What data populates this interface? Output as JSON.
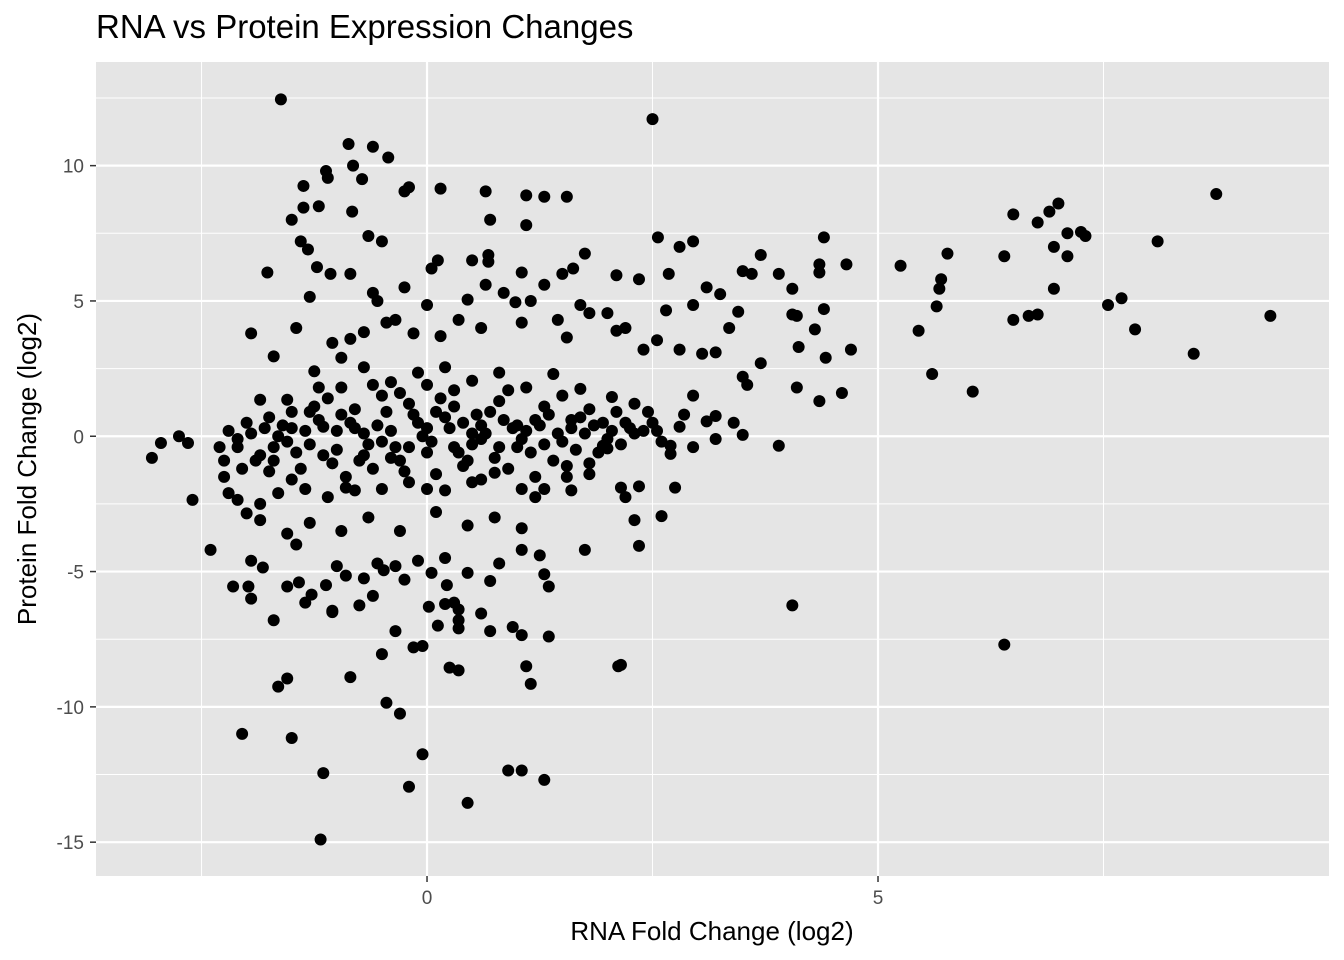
{
  "chart_data": {
    "type": "scatter",
    "title": "RNA vs Protein Expression Changes",
    "xlabel": "RNA Fold Change (log2)",
    "ylabel": "Protein Fold Change (log2)",
    "xlim": [
      -3.67,
      10.0
    ],
    "ylim": [
      -16.25,
      13.83
    ],
    "x_ticks": [
      0,
      5
    ],
    "x_tick_labels": [
      "0",
      "5"
    ],
    "y_ticks": [
      -15,
      -10,
      -5,
      0,
      5,
      10
    ],
    "y_tick_labels": [
      "-15",
      "-10",
      "-5",
      "0",
      "5",
      "10"
    ],
    "grid": true,
    "legend": "none",
    "colors": {
      "panel": "#e5e5e5",
      "grid": "#ffffff",
      "point": "#000000",
      "tick_text": "#4d4d4d"
    },
    "points": [
      [
        -1.62,
        12.45
      ],
      [
        2.5,
        11.72
      ],
      [
        -0.87,
        10.8
      ],
      [
        -0.6,
        10.7
      ],
      [
        -0.43,
        10.3
      ],
      [
        -0.82,
        10.0
      ],
      [
        -1.12,
        9.8
      ],
      [
        -1.1,
        9.55
      ],
      [
        -0.72,
        9.5
      ],
      [
        -1.37,
        9.25
      ],
      [
        -0.2,
        9.2
      ],
      [
        -0.25,
        9.05
      ],
      [
        0.15,
        9.15
      ],
      [
        0.65,
        9.05
      ],
      [
        1.1,
        8.9
      ],
      [
        1.3,
        8.85
      ],
      [
        1.55,
        8.85
      ],
      [
        -1.37,
        8.45
      ],
      [
        -1.2,
        8.5
      ],
      [
        -0.83,
        8.3
      ],
      [
        -1.5,
        8.0
      ],
      [
        0.7,
        8.0
      ],
      [
        1.1,
        7.8
      ],
      [
        -1.4,
        7.2
      ],
      [
        -1.32,
        6.9
      ],
      [
        -0.65,
        7.4
      ],
      [
        -0.5,
        7.2
      ],
      [
        2.56,
        7.35
      ],
      [
        2.8,
        7.0
      ],
      [
        2.95,
        7.2
      ],
      [
        -1.77,
        6.05
      ],
      [
        -1.22,
        6.25
      ],
      [
        -1.07,
        6.0
      ],
      [
        -0.85,
        6.0
      ],
      [
        0.05,
        6.2
      ],
      [
        0.12,
        6.5
      ],
      [
        0.5,
        6.5
      ],
      [
        0.68,
        6.7
      ],
      [
        0.68,
        6.45
      ],
      [
        1.05,
        6.05
      ],
      [
        1.5,
        6.0
      ],
      [
        1.62,
        6.2
      ],
      [
        1.75,
        6.75
      ],
      [
        2.1,
        5.95
      ],
      [
        2.35,
        5.8
      ],
      [
        2.68,
        6.0
      ],
      [
        3.5,
        6.1
      ],
      [
        3.6,
        6.0
      ],
      [
        3.7,
        6.7
      ],
      [
        3.9,
        6.0
      ],
      [
        4.35,
        6.35
      ],
      [
        4.4,
        7.35
      ],
      [
        4.35,
        6.05
      ],
      [
        4.65,
        6.35
      ],
      [
        5.25,
        6.3
      ],
      [
        5.7,
        5.8
      ],
      [
        5.77,
        6.75
      ],
      [
        6.4,
        6.65
      ],
      [
        6.5,
        8.2
      ],
      [
        6.77,
        7.9
      ],
      [
        6.9,
        8.3
      ],
      [
        7.0,
        8.6
      ],
      [
        6.95,
        7.0
      ],
      [
        7.1,
        7.5
      ],
      [
        7.1,
        6.65
      ],
      [
        7.25,
        7.55
      ],
      [
        7.3,
        7.4
      ],
      [
        8.1,
        7.2
      ],
      [
        8.75,
        8.95
      ],
      [
        7.7,
        5.1
      ],
      [
        7.55,
        4.85
      ],
      [
        7.85,
        3.95
      ],
      [
        8.5,
        3.05
      ],
      [
        9.35,
        4.45
      ],
      [
        6.95,
        5.45
      ],
      [
        6.5,
        4.3
      ],
      [
        6.67,
        4.45
      ],
      [
        6.77,
        4.5
      ],
      [
        5.45,
        3.9
      ],
      [
        5.65,
        4.8
      ],
      [
        5.68,
        5.45
      ],
      [
        5.6,
        2.3
      ],
      [
        6.05,
        1.65
      ],
      [
        4.05,
        4.5
      ],
      [
        4.05,
        5.45
      ],
      [
        4.1,
        4.45
      ],
      [
        4.3,
        3.95
      ],
      [
        4.4,
        4.7
      ],
      [
        4.42,
        2.9
      ],
      [
        4.12,
        3.3
      ],
      [
        4.1,
        1.8
      ],
      [
        4.35,
        1.3
      ],
      [
        4.6,
        1.6
      ],
      [
        4.7,
        3.2
      ],
      [
        3.9,
        -0.35
      ],
      [
        4.05,
        -6.25
      ],
      [
        6.4,
        -7.7
      ],
      [
        -3.05,
        -0.8
      ],
      [
        -2.95,
        -0.25
      ],
      [
        -2.75,
        0.0
      ],
      [
        -2.65,
        -0.25
      ],
      [
        -2.6,
        -2.35
      ],
      [
        -2.4,
        -4.2
      ],
      [
        -2.25,
        -1.5
      ],
      [
        -2.2,
        -2.1
      ],
      [
        -2.1,
        -2.35
      ],
      [
        -2.15,
        -5.55
      ],
      [
        -1.98,
        -5.55
      ],
      [
        -1.95,
        -4.6
      ],
      [
        -1.95,
        -6.0
      ],
      [
        -1.82,
        -4.85
      ],
      [
        -1.7,
        -6.8
      ],
      [
        -1.55,
        -5.55
      ],
      [
        -1.45,
        -4.0
      ],
      [
        -1.42,
        -5.4
      ],
      [
        -1.28,
        -5.85
      ],
      [
        -1.35,
        -6.15
      ],
      [
        -1.12,
        -5.5
      ],
      [
        -1.05,
        -6.5
      ],
      [
        -1.0,
        -4.8
      ],
      [
        -0.9,
        -5.15
      ],
      [
        -0.7,
        -5.25
      ],
      [
        -0.6,
        -5.9
      ],
      [
        -0.48,
        -4.95
      ],
      [
        -0.55,
        -4.7
      ],
      [
        -0.35,
        -4.8
      ],
      [
        -0.25,
        -5.3
      ],
      [
        -0.1,
        -4.6
      ],
      [
        0.05,
        -5.05
      ],
      [
        0.2,
        -4.5
      ],
      [
        0.22,
        -5.5
      ],
      [
        0.45,
        -5.05
      ],
      [
        0.7,
        -5.35
      ],
      [
        0.8,
        -4.7
      ],
      [
        1.05,
        -4.2
      ],
      [
        1.25,
        -4.4
      ],
      [
        1.3,
        -5.1
      ],
      [
        1.35,
        -5.55
      ],
      [
        1.75,
        -4.2
      ],
      [
        0.2,
        -6.2
      ],
      [
        0.12,
        -7.0
      ],
      [
        0.3,
        -6.15
      ],
      [
        0.35,
        -6.4
      ],
      [
        0.35,
        -6.8
      ],
      [
        0.35,
        -7.1
      ],
      [
        0.02,
        -6.3
      ],
      [
        0.6,
        -6.55
      ],
      [
        0.7,
        -7.2
      ],
      [
        0.95,
        -7.05
      ],
      [
        1.05,
        -7.35
      ],
      [
        1.35,
        -7.4
      ],
      [
        1.1,
        -8.5
      ],
      [
        1.15,
        -9.15
      ],
      [
        -0.05,
        -7.75
      ],
      [
        -0.15,
        -7.8
      ],
      [
        -0.35,
        -7.2
      ],
      [
        -0.5,
        -8.05
      ],
      [
        -0.75,
        -6.25
      ],
      [
        -1.05,
        -6.45
      ],
      [
        -0.85,
        -8.9
      ],
      [
        -1.55,
        -8.95
      ],
      [
        -1.65,
        -9.25
      ],
      [
        -2.05,
        -11.0
      ],
      [
        -1.5,
        -11.15
      ],
      [
        -1.15,
        -12.45
      ],
      [
        -0.45,
        -9.85
      ],
      [
        -0.3,
        -10.25
      ],
      [
        -0.05,
        -11.75
      ],
      [
        -0.2,
        -12.95
      ],
      [
        0.35,
        -8.65
      ],
      [
        0.25,
        -8.55
      ],
      [
        1.05,
        -12.35
      ],
      [
        0.9,
        -12.35
      ],
      [
        1.3,
        -12.7
      ],
      [
        0.45,
        -13.55
      ],
      [
        -1.18,
        -14.9
      ],
      [
        2.15,
        -8.45
      ],
      [
        2.12,
        -8.5
      ],
      [
        2.3,
        -3.1
      ],
      [
        2.35,
        -4.05
      ],
      [
        2.2,
        -2.25
      ],
      [
        2.15,
        -1.9
      ],
      [
        2.35,
        -1.85
      ],
      [
        2.6,
        -2.95
      ],
      [
        2.75,
        -1.9
      ],
      [
        -1.95,
        3.8
      ],
      [
        -1.85,
        1.35
      ],
      [
        -1.7,
        2.95
      ],
      [
        -1.45,
        4.0
      ],
      [
        -1.3,
        5.15
      ],
      [
        -1.05,
        3.45
      ],
      [
        -0.95,
        2.9
      ],
      [
        -0.85,
        3.6
      ],
      [
        -0.7,
        3.85
      ],
      [
        -0.6,
        5.3
      ],
      [
        -0.55,
        5.0
      ],
      [
        -0.45,
        4.2
      ],
      [
        -0.35,
        4.3
      ],
      [
        -0.25,
        5.5
      ],
      [
        -0.15,
        3.8
      ],
      [
        0.0,
        4.85
      ],
      [
        0.15,
        3.7
      ],
      [
        0.35,
        4.3
      ],
      [
        0.45,
        5.05
      ],
      [
        0.6,
        4.0
      ],
      [
        0.65,
        5.6
      ],
      [
        0.85,
        5.3
      ],
      [
        0.98,
        4.95
      ],
      [
        1.05,
        4.2
      ],
      [
        1.15,
        5.0
      ],
      [
        1.3,
        5.6
      ],
      [
        1.45,
        4.3
      ],
      [
        1.55,
        3.65
      ],
      [
        1.7,
        4.85
      ],
      [
        1.8,
        4.55
      ],
      [
        2.0,
        4.55
      ],
      [
        2.1,
        3.9
      ],
      [
        2.2,
        4.0
      ],
      [
        2.4,
        3.2
      ],
      [
        2.55,
        3.55
      ],
      [
        2.65,
        4.65
      ],
      [
        2.8,
        3.2
      ],
      [
        2.95,
        4.85
      ],
      [
        3.1,
        5.5
      ],
      [
        3.25,
        5.25
      ],
      [
        3.35,
        4.0
      ],
      [
        3.2,
        3.1
      ],
      [
        3.05,
        3.05
      ],
      [
        3.45,
        4.6
      ],
      [
        3.5,
        2.2
      ],
      [
        3.55,
        1.9
      ],
      [
        3.7,
        2.7
      ],
      [
        2.95,
        1.5
      ],
      [
        2.85,
        0.8
      ],
      [
        2.8,
        0.35
      ],
      [
        2.95,
        -0.4
      ],
      [
        3.1,
        0.55
      ],
      [
        3.2,
        -0.1
      ],
      [
        3.4,
        0.5
      ],
      [
        3.5,
        0.05
      ],
      [
        3.2,
        0.75
      ],
      [
        2.7,
        -0.35
      ],
      [
        2.7,
        -0.65
      ],
      [
        2.45,
        0.9
      ],
      [
        2.55,
        0.2
      ],
      [
        2.25,
        0.3
      ],
      [
        2.0,
        -0.45
      ],
      [
        1.95,
        -0.35
      ],
      [
        1.8,
        -1.0
      ],
      [
        1.55,
        -1.5
      ],
      [
        1.6,
        -2.0
      ],
      [
        1.3,
        -1.95
      ],
      [
        1.2,
        -2.25
      ],
      [
        1.05,
        -1.95
      ],
      [
        0.75,
        -1.35
      ],
      [
        0.5,
        -1.7
      ],
      [
        0.2,
        -2.0
      ],
      [
        0.0,
        -1.95
      ],
      [
        -0.2,
        -1.7
      ],
      [
        -0.5,
        -1.95
      ],
      [
        -0.8,
        -2.0
      ],
      [
        -1.1,
        -2.25
      ],
      [
        -1.35,
        -1.95
      ],
      [
        -1.65,
        -2.1
      ],
      [
        -1.85,
        -2.5
      ],
      [
        -2.0,
        -2.85
      ],
      [
        -2.25,
        -0.9
      ],
      [
        -2.1,
        -0.4
      ],
      [
        -1.95,
        0.1
      ],
      [
        -1.75,
        0.7
      ],
      [
        -1.55,
        1.35
      ],
      [
        -1.25,
        2.4
      ],
      [
        -0.95,
        1.8
      ],
      [
        -0.7,
        2.55
      ],
      [
        -0.4,
        2.0
      ],
      [
        -0.1,
        2.35
      ],
      [
        0.2,
        2.55
      ],
      [
        0.5,
        2.05
      ],
      [
        0.8,
        2.35
      ],
      [
        1.1,
        1.8
      ],
      [
        1.4,
        2.3
      ],
      [
        1.7,
        1.75
      ],
      [
        2.05,
        1.45
      ],
      [
        2.3,
        1.2
      ],
      [
        -1.3,
        -3.2
      ],
      [
        -0.95,
        -3.5
      ],
      [
        -0.65,
        -3.0
      ],
      [
        -0.3,
        -3.5
      ],
      [
        0.1,
        -2.8
      ],
      [
        0.45,
        -3.3
      ],
      [
        0.75,
        -3.0
      ],
      [
        1.05,
        -3.4
      ],
      [
        -1.55,
        -3.6
      ],
      [
        -1.85,
        -3.1
      ],
      [
        -2.1,
        -0.1
      ],
      [
        -1.85,
        -0.7
      ],
      [
        -1.6,
        0.4
      ],
      [
        -1.4,
        -1.2
      ],
      [
        -1.2,
        0.6
      ],
      [
        -1.0,
        -0.5
      ],
      [
        -0.8,
        1.0
      ],
      [
        -0.6,
        -1.2
      ],
      [
        -0.4,
        0.2
      ],
      [
        -0.2,
        1.2
      ],
      [
        0.0,
        -0.6
      ],
      [
        0.2,
        0.7
      ],
      [
        0.4,
        -1.1
      ],
      [
        0.6,
        0.4
      ],
      [
        0.8,
        1.3
      ],
      [
        1.0,
        -0.4
      ],
      [
        1.2,
        0.6
      ],
      [
        1.4,
        -0.9
      ],
      [
        1.6,
        0.3
      ],
      [
        1.8,
        1.0
      ],
      [
        2.0,
        -0.1
      ],
      [
        2.2,
        0.5
      ],
      [
        -2.0,
        0.5
      ],
      [
        -1.75,
        -1.3
      ],
      [
        -1.5,
        0.9
      ],
      [
        -1.3,
        -0.3
      ],
      [
        -1.1,
        1.4
      ],
      [
        -0.9,
        -1.5
      ],
      [
        -0.7,
        0.1
      ],
      [
        -0.5,
        1.5
      ],
      [
        -0.3,
        -0.9
      ],
      [
        -0.1,
        0.5
      ],
      [
        0.1,
        -1.4
      ],
      [
        0.3,
        1.1
      ],
      [
        0.5,
        -0.3
      ],
      [
        0.7,
        0.9
      ],
      [
        0.9,
        -1.2
      ],
      [
        1.1,
        0.2
      ],
      [
        1.3,
        1.1
      ],
      [
        1.5,
        -0.2
      ],
      [
        1.7,
        0.7
      ],
      [
        1.9,
        -0.6
      ],
      [
        2.1,
        0.9
      ],
      [
        2.3,
        0.1
      ],
      [
        -1.9,
        -0.9
      ],
      [
        -1.65,
        0.0
      ],
      [
        -1.45,
        -0.6
      ],
      [
        -1.25,
        1.1
      ],
      [
        -1.05,
        -1.0
      ],
      [
        -0.85,
        0.5
      ],
      [
        -0.65,
        -0.3
      ],
      [
        -0.45,
        0.9
      ],
      [
        -0.25,
        -1.3
      ],
      [
        -0.05,
        0.0
      ],
      [
        0.15,
        1.4
      ],
      [
        0.35,
        -0.6
      ],
      [
        0.55,
        0.8
      ],
      [
        0.75,
        -0.8
      ],
      [
        0.95,
        0.3
      ],
      [
        1.15,
        -0.6
      ],
      [
        1.35,
        0.8
      ],
      [
        1.55,
        -1.1
      ],
      [
        1.75,
        0.1
      ],
      [
        1.95,
        0.5
      ],
      [
        2.15,
        -0.3
      ],
      [
        2.4,
        0.2
      ],
      [
        -1.8,
        0.3
      ],
      [
        -1.55,
        -0.2
      ],
      [
        -1.35,
        0.2
      ],
      [
        -1.15,
        -0.7
      ],
      [
        -0.95,
        0.8
      ],
      [
        -0.75,
        -0.9
      ],
      [
        -0.55,
        0.4
      ],
      [
        -0.35,
        -0.4
      ],
      [
        -0.15,
        0.8
      ],
      [
        0.05,
        -0.2
      ],
      [
        0.25,
        0.3
      ],
      [
        0.45,
        -0.9
      ],
      [
        0.65,
        0.1
      ],
      [
        0.85,
        0.6
      ],
      [
        1.05,
        -0.1
      ],
      [
        1.25,
        0.4
      ],
      [
        1.45,
        0.1
      ],
      [
        1.65,
        -0.5
      ],
      [
        1.85,
        0.4
      ],
      [
        2.05,
        0.2
      ],
      [
        -2.3,
        -0.4
      ],
      [
        -2.2,
        0.2
      ],
      [
        -2.05,
        -1.2
      ],
      [
        -1.7,
        -0.4
      ],
      [
        -1.5,
        -1.6
      ],
      [
        -1.2,
        1.8
      ],
      [
        -0.9,
        -1.9
      ],
      [
        -0.6,
        1.9
      ],
      [
        -0.3,
        1.6
      ],
      [
        0.0,
        1.9
      ],
      [
        0.3,
        1.7
      ],
      [
        0.6,
        -1.6
      ],
      [
        0.9,
        1.7
      ],
      [
        1.2,
        -1.5
      ],
      [
        1.5,
        1.5
      ],
      [
        1.8,
        -1.4
      ],
      [
        2.5,
        0.5
      ],
      [
        2.6,
        -0.2
      ],
      [
        -1.0,
        0.2
      ],
      [
        -0.5,
        -0.2
      ],
      [
        0.0,
        0.3
      ],
      [
        0.5,
        0.1
      ],
      [
        1.0,
        0.4
      ],
      [
        -1.5,
        0.3
      ],
      [
        -0.7,
        -0.7
      ],
      [
        0.3,
        -0.4
      ],
      [
        0.8,
        -0.4
      ],
      [
        -0.2,
        -0.4
      ],
      [
        -1.7,
        -0.9
      ],
      [
        -1.3,
        0.9
      ],
      [
        0.1,
        0.9
      ],
      [
        0.6,
        -0.1
      ],
      [
        1.3,
        -0.3
      ],
      [
        -0.4,
        -0.8
      ],
      [
        -0.8,
        0.3
      ],
      [
        0.4,
        0.5
      ],
      [
        -1.15,
        0.35
      ],
      [
        1.6,
        0.6
      ]
    ]
  }
}
